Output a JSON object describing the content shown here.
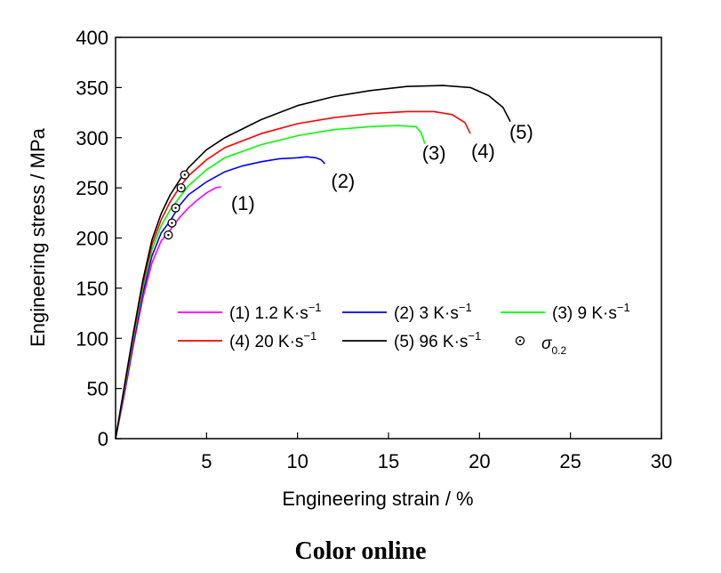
{
  "caption": "Color online",
  "chart_data": {
    "type": "line",
    "xlabel": "Engineering strain / %",
    "ylabel": "Engineering stress / MPa",
    "xlim": [
      0,
      30
    ],
    "ylim": [
      0,
      400
    ],
    "x_ticks": [
      5,
      10,
      15,
      20,
      25,
      30
    ],
    "y_ticks": [
      0,
      50,
      100,
      150,
      200,
      250,
      300,
      350,
      400
    ],
    "grid": false,
    "legend_position": "inside-middle",
    "series": [
      {
        "name": "(1) 1.2 K·s⁻¹",
        "label": "(1)",
        "color": "#ff00ff",
        "x": [
          0,
          0.5,
          1.0,
          1.5,
          2.0,
          2.5,
          3.0,
          3.5,
          4.0,
          4.5,
          5.0,
          5.5,
          5.8
        ],
        "y": [
          0,
          45,
          95,
          140,
          175,
          197,
          208,
          220,
          230,
          238,
          245,
          250,
          251
        ]
      },
      {
        "name": "(2) 3 K·s⁻¹",
        "label": "(2)",
        "color": "#0000ff",
        "x": [
          0,
          0.5,
          1.0,
          1.5,
          2.0,
          2.5,
          3.0,
          3.5,
          4.0,
          5.0,
          6.0,
          7.0,
          8.0,
          9.0,
          10.0,
          10.5,
          11.0,
          11.3,
          11.5
        ],
        "y": [
          0,
          48,
          98,
          145,
          182,
          205,
          217,
          232,
          243,
          256,
          266,
          272,
          276,
          279,
          280,
          281,
          280,
          278,
          274
        ]
      },
      {
        "name": "(3) 9 K·s⁻¹",
        "label": "(3)",
        "color": "#00ff00",
        "x": [
          0,
          0.5,
          1.0,
          1.5,
          2.0,
          2.5,
          3.0,
          3.5,
          4.0,
          5.0,
          6.0,
          8.0,
          10.0,
          12.0,
          14.0,
          15.5,
          16.5,
          16.8,
          17.0
        ],
        "y": [
          0,
          50,
          102,
          150,
          188,
          212,
          228,
          240,
          252,
          268,
          280,
          293,
          302,
          308,
          311,
          312,
          311,
          305,
          294
        ]
      },
      {
        "name": "(4) 20 K·s⁻¹",
        "label": "(4)",
        "color": "#ff0000",
        "x": [
          0,
          0.5,
          1.0,
          1.5,
          2.0,
          2.5,
          3.0,
          3.5,
          4.0,
          5.0,
          6.0,
          8.0,
          10.0,
          12.0,
          14.0,
          16.0,
          17.5,
          18.5,
          19.2,
          19.5
        ],
        "y": [
          0,
          52,
          105,
          154,
          193,
          218,
          236,
          250,
          262,
          278,
          290,
          304,
          314,
          320,
          324,
          326,
          326,
          323,
          315,
          304
        ]
      },
      {
        "name": "(5) 96 K·s⁻¹",
        "label": "(5)",
        "color": "#000000",
        "x": [
          0,
          0.5,
          1.0,
          1.5,
          2.0,
          2.5,
          3.0,
          3.5,
          4.0,
          5.0,
          6.0,
          8.0,
          10.0,
          12.0,
          14.0,
          16.0,
          18.0,
          19.5,
          20.5,
          21.3,
          21.7
        ],
        "y": [
          0,
          54,
          108,
          158,
          198,
          224,
          243,
          257,
          270,
          288,
          300,
          318,
          332,
          341,
          347,
          351,
          352,
          350,
          342,
          330,
          316
        ]
      }
    ],
    "yield_points": {
      "name": "σ0.2",
      "x": [
        2.9,
        3.1,
        3.3,
        3.6,
        3.8
      ],
      "y": [
        203,
        215,
        230,
        250,
        263
      ]
    },
    "curve_label_positions": [
      {
        "label": "(1)",
        "x": 7.0,
        "y": 228
      },
      {
        "label": "(2)",
        "x": 12.5,
        "y": 250
      },
      {
        "label": "(3)",
        "x": 17.5,
        "y": 278
      },
      {
        "label": "(4)",
        "x": 20.2,
        "y": 280
      },
      {
        "label": "(5)",
        "x": 22.3,
        "y": 299
      }
    ]
  }
}
